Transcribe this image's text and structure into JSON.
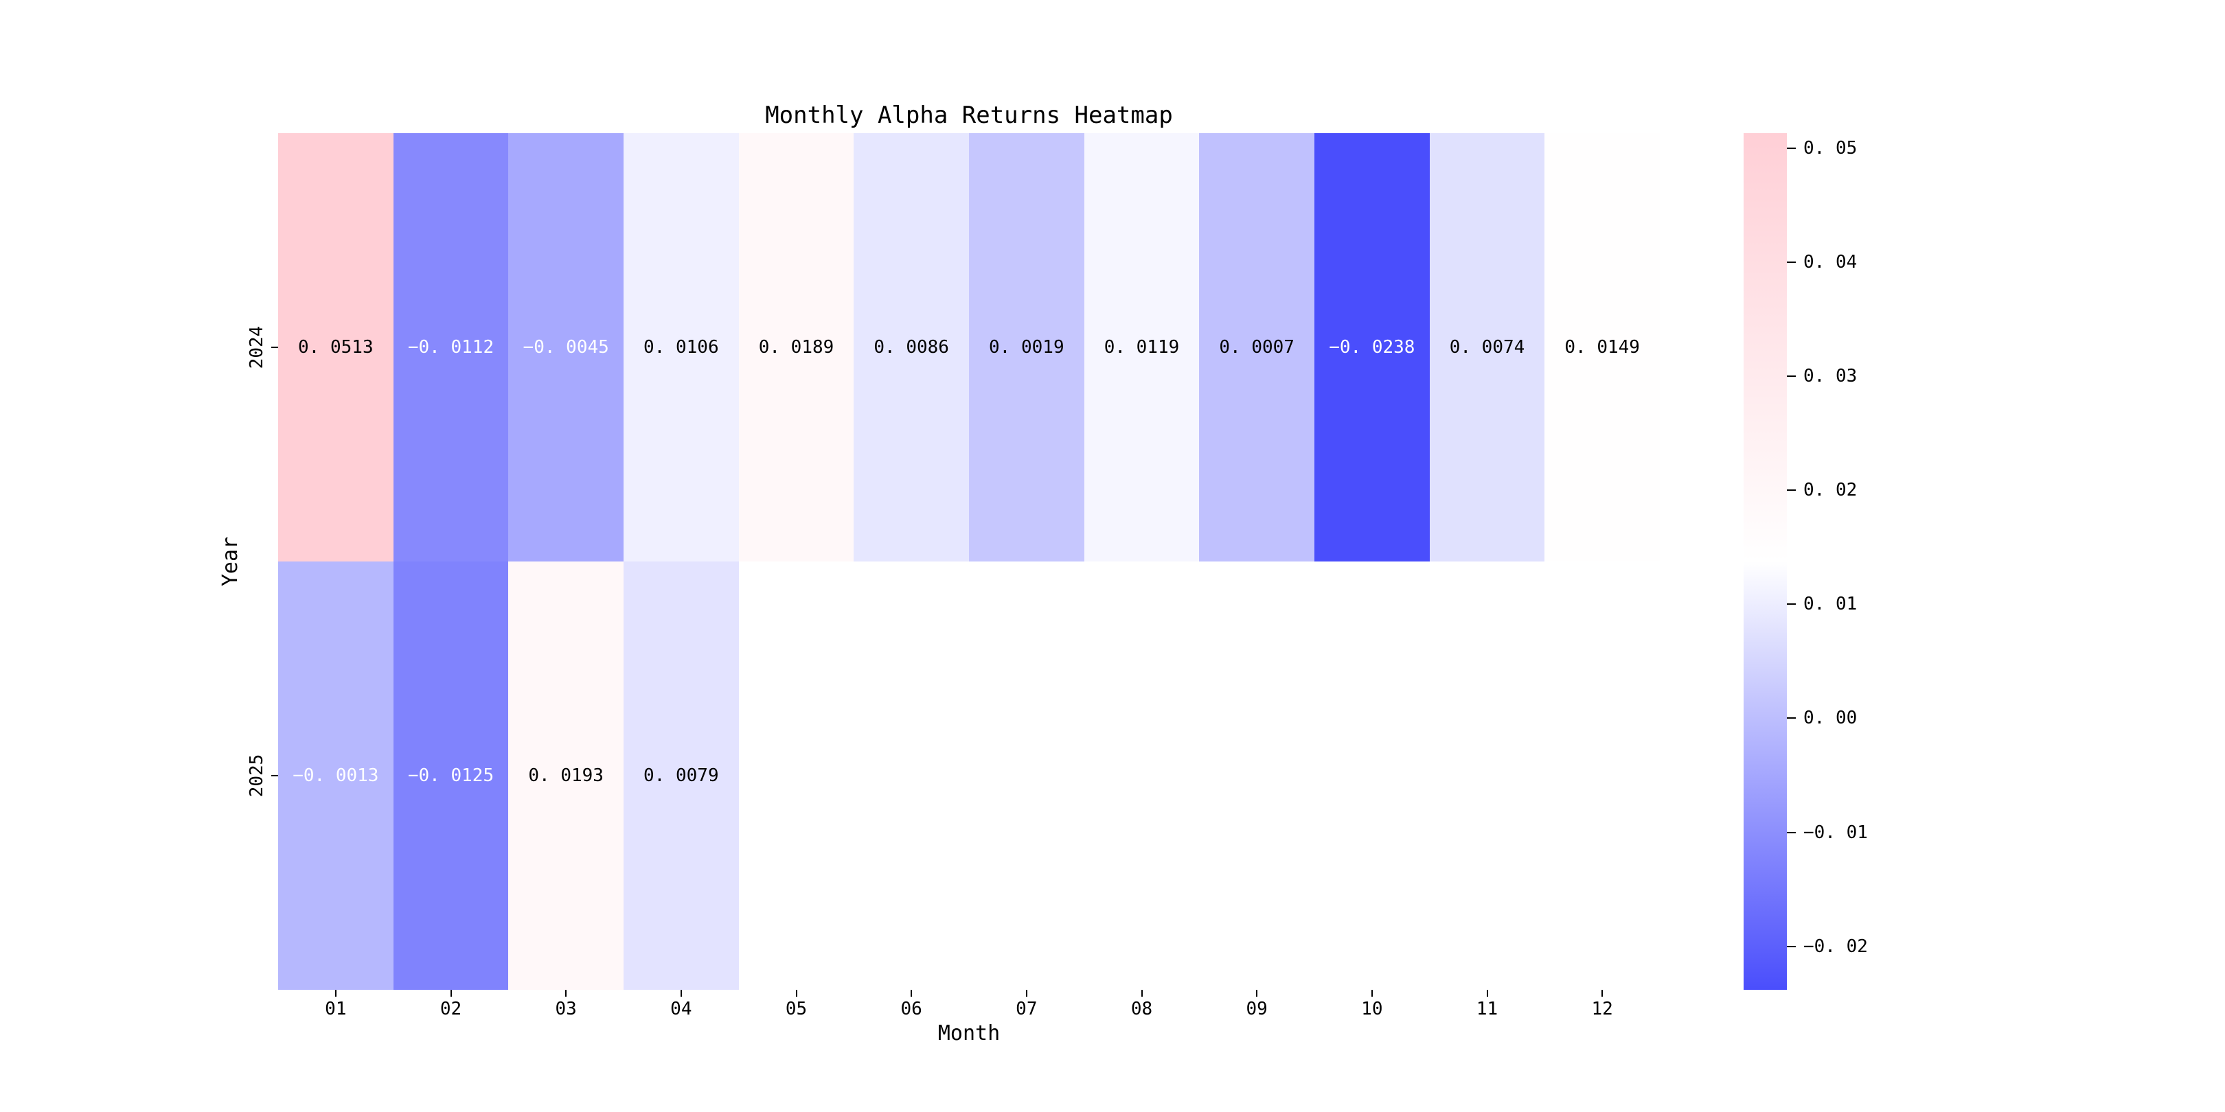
{
  "title": "Monthly Alpha Returns Heatmap",
  "colors": {
    "background": "#ffffff",
    "positive_max_pink": "#ffcfd6",
    "negative_max_blue": "#4a4efc",
    "center_white": "#ffffff",
    "annotation_dark": "#000000",
    "annotation_light": "#ffffff",
    "tick_color": "#000000"
  },
  "chart_data": {
    "type": "heatmap",
    "title": "Monthly Alpha Returns Heatmap",
    "xlabel": "Month",
    "ylabel": "Year",
    "x_categories": [
      "01",
      "02",
      "03",
      "04",
      "05",
      "06",
      "07",
      "08",
      "09",
      "10",
      "11",
      "12"
    ],
    "y_categories": [
      "2024",
      "2025"
    ],
    "rows": [
      {
        "year": "2024",
        "values": [
          0.0513,
          -0.0112,
          -0.0045,
          0.0106,
          0.0189,
          0.0086,
          0.0019,
          0.0119,
          0.0007,
          -0.0238,
          0.0074,
          0.0149
        ]
      },
      {
        "year": "2025",
        "values": [
          -0.0013,
          -0.0125,
          0.0193,
          0.0079,
          null,
          null,
          null,
          null,
          null,
          null,
          null,
          null
        ]
      }
    ],
    "cell_labels": [
      [
        "0. 0513",
        "−0. 0112",
        "−0. 0045",
        "0. 0106",
        "0. 0189",
        "0. 0086",
        "0. 0019",
        "0. 0119",
        "0. 0007",
        "−0. 0238",
        "0. 0074",
        "0. 0149"
      ],
      [
        "−0. 0013",
        "−0. 0125",
        "0. 0193",
        "0. 0079",
        "",
        "",
        "",
        "",
        "",
        "",
        "",
        ""
      ]
    ],
    "vmin": -0.0238,
    "vmax": 0.0513,
    "color_center_value": 0.01375,
    "colorbar_tick_values": [
      0.05,
      0.04,
      0.03,
      0.02,
      0.01,
      0.0,
      -0.01,
      -0.02
    ],
    "colorbar_tick_labels": [
      "0. 05",
      "0. 04",
      "0. 03",
      "0. 02",
      "0. 01",
      "0. 00",
      "−0. 01",
      "−0. 02"
    ],
    "legend_position": "colorbar-right",
    "grid": false
  }
}
